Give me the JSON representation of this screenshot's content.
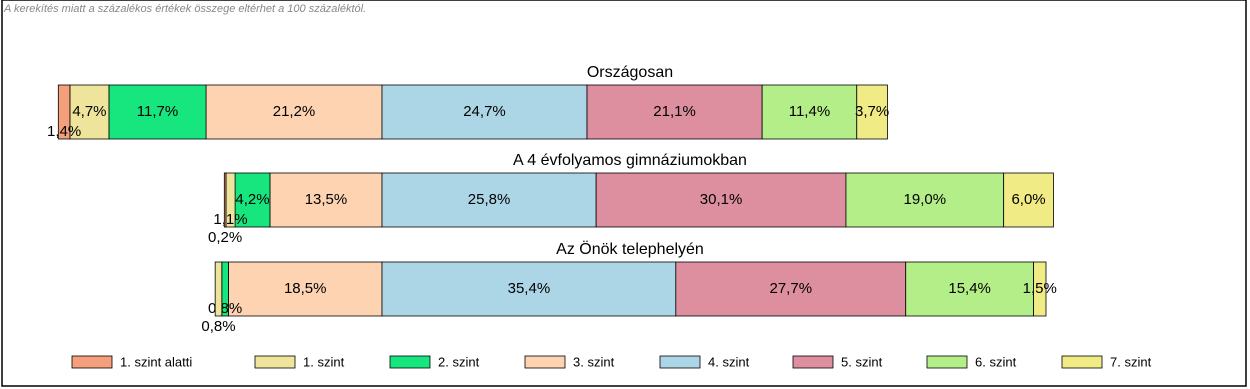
{
  "chart_data": {
    "type": "bar",
    "stacked": "diverging",
    "note": "A kerekítés miatt a  százalékos értékek összege eltérhet a 100 százaléktól.",
    "categories": [
      "Országosan",
      "A 4 évfolyamos gimnáziumokban",
      "Az Önök telephelyén"
    ],
    "series": [
      {
        "name": "1. szint alatti",
        "color": "#f4a07c",
        "side": "left",
        "values": [
          1.4,
          0.2,
          0
        ],
        "value_labels": [
          "1,4%",
          "0,2%",
          null
        ]
      },
      {
        "name": "1. szint",
        "color": "#eee49c",
        "side": "left",
        "values": [
          4.7,
          1.1,
          0.8
        ],
        "value_labels": [
          "4,7%",
          "1,1%",
          "0,8%"
        ]
      },
      {
        "name": "2. szint",
        "color": "#17e67e",
        "side": "left",
        "values": [
          11.7,
          4.2,
          0.8
        ],
        "value_labels": [
          "11,7%",
          "4,2%",
          "0,8%"
        ]
      },
      {
        "name": "3. szint",
        "color": "#fdd3b2",
        "side": "left",
        "values": [
          21.2,
          13.5,
          18.5
        ],
        "value_labels": [
          "21,2%",
          "13,5%",
          "18,5%"
        ]
      },
      {
        "name": "4. szint",
        "color": "#acd6e6",
        "side": "right",
        "values": [
          24.7,
          25.8,
          35.4
        ],
        "value_labels": [
          "24,7%",
          "25,8%",
          "35,4%"
        ]
      },
      {
        "name": "5. szint",
        "color": "#dd8fa0",
        "side": "right",
        "values": [
          21.1,
          30.1,
          27.7
        ],
        "value_labels": [
          "21,1%",
          "30,1%",
          "27,7%"
        ]
      },
      {
        "name": "6. szint",
        "color": "#b4ee88",
        "side": "right",
        "values": [
          11.4,
          19.0,
          15.4
        ],
        "value_labels": [
          "11,4%",
          "19,0%",
          "15,4%"
        ]
      },
      {
        "name": "7. szint",
        "color": "#f1eb86",
        "side": "right",
        "values": [
          3.7,
          6.0,
          1.5
        ],
        "value_labels": [
          "3,7%",
          "6,0%",
          "1,5%"
        ]
      }
    ]
  }
}
